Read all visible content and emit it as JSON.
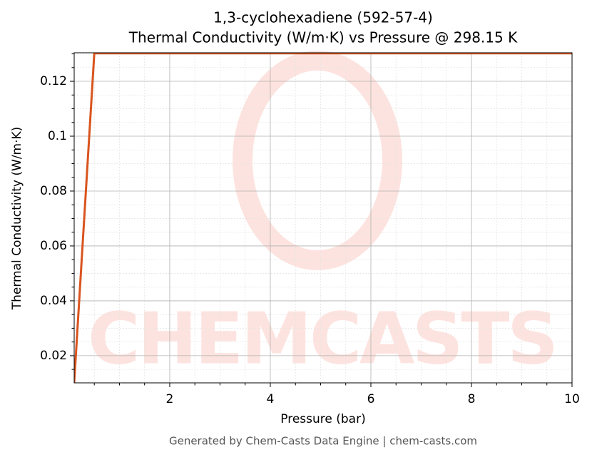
{
  "chart_data": {
    "type": "line",
    "title": "1,3-cyclohexadiene (592-57-4)",
    "subtitle": "Thermal Conductivity (W/m·K) vs Pressure @ 298.15 K",
    "x_label": "Pressure (bar)",
    "y_label": "Thermal Conductivity (W/m·K)",
    "watermark": "CHEMCASTS",
    "footer": "Generated by Chem-Casts Data Engine | chem-casts.com",
    "x": [
      0.1,
      0.5,
      1,
      2,
      4,
      6,
      8,
      10
    ],
    "series": [
      {
        "name": "Thermal Conductivity",
        "color": "#d9541e",
        "values": [
          0.0101,
          0.1302,
          0.1302,
          0.1302,
          0.1302,
          0.1302,
          0.1302,
          0.1302
        ]
      }
    ],
    "xlim": [
      0.1,
      10
    ],
    "ylim": [
      0.0101,
      0.1304
    ],
    "xticks": [
      2,
      4,
      6,
      8,
      10
    ],
    "yticks": [
      0.02,
      0.04,
      0.06,
      0.08,
      0.1,
      0.12
    ],
    "xminorticks": [
      0.5,
      1,
      1.5,
      2.5,
      3,
      3.5,
      4.5,
      5,
      5.5,
      6.5,
      7,
      7.5,
      8.5,
      9,
      9.5
    ],
    "yminorticks": [
      0.015,
      0.025,
      0.03,
      0.035,
      0.045,
      0.05,
      0.055,
      0.065,
      0.07,
      0.075,
      0.085,
      0.09,
      0.095,
      0.105,
      0.11,
      0.115,
      0.125,
      0.13
    ],
    "grid": true
  }
}
